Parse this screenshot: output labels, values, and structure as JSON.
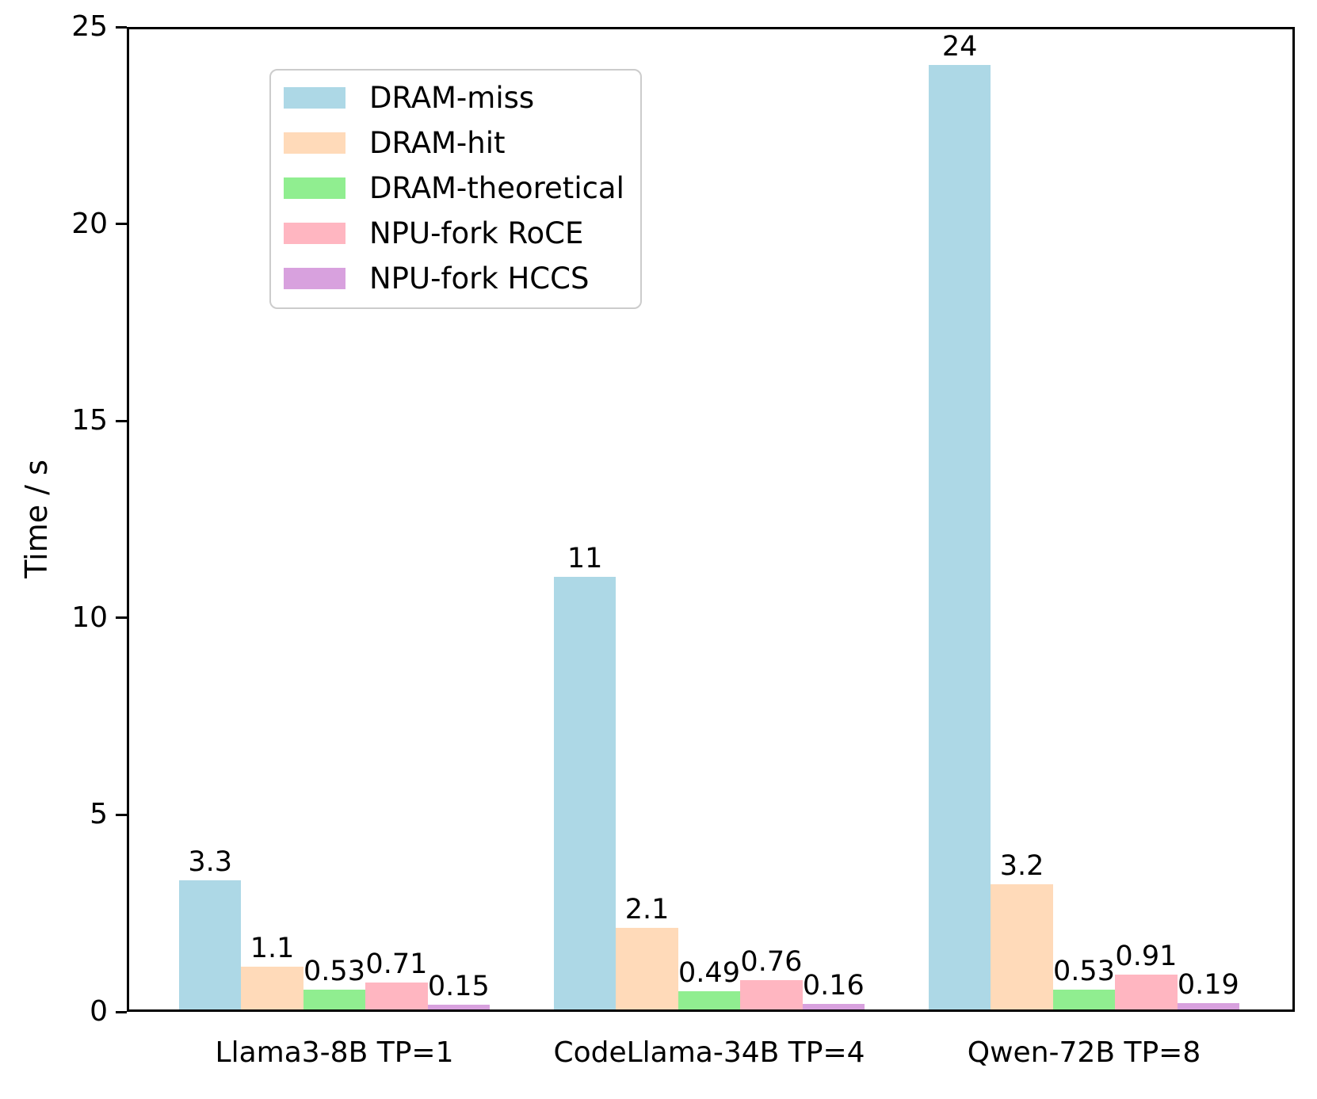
{
  "figure": {
    "background": "#ffffff",
    "text_color": "#000000",
    "axis_color": "#000000",
    "legend_border_color": "#cccccc"
  },
  "chart_data": {
    "type": "bar",
    "title": "",
    "xlabel": "",
    "ylabel": "Time / s",
    "ylim": [
      0,
      25
    ],
    "yticks": [
      "0",
      "5",
      "10",
      "15",
      "20",
      "25"
    ],
    "grid": false,
    "legend_position": "upper-left",
    "categories": [
      "Llama3-8B TP=1",
      "CodeLlama-34B TP=4",
      "Qwen-72B TP=8"
    ],
    "series": [
      {
        "name": "DRAM-miss",
        "color": "#ADD8E6",
        "values": [
          3.3,
          11,
          24
        ],
        "labels": [
          "3.3",
          "11",
          "24"
        ]
      },
      {
        "name": "DRAM-hit",
        "color": "#FFDAB9",
        "values": [
          1.1,
          2.1,
          3.2
        ],
        "labels": [
          "1.1",
          "2.1",
          "3.2"
        ]
      },
      {
        "name": "DRAM-theoretical",
        "color": "#90EE90",
        "values": [
          0.53,
          0.49,
          0.53
        ],
        "labels": [
          "0.53",
          "0.49",
          "0.53"
        ]
      },
      {
        "name": "NPU-fork RoCE",
        "color": "#FFB6C1",
        "values": [
          0.71,
          0.76,
          0.91
        ],
        "labels": [
          "0.71",
          "0.76",
          "0.91"
        ]
      },
      {
        "name": "NPU-fork HCCS",
        "color": "#D8A1DE",
        "values": [
          0.15,
          0.16,
          0.19
        ],
        "labels": [
          "0.15",
          "0.16",
          "0.19"
        ]
      }
    ]
  }
}
